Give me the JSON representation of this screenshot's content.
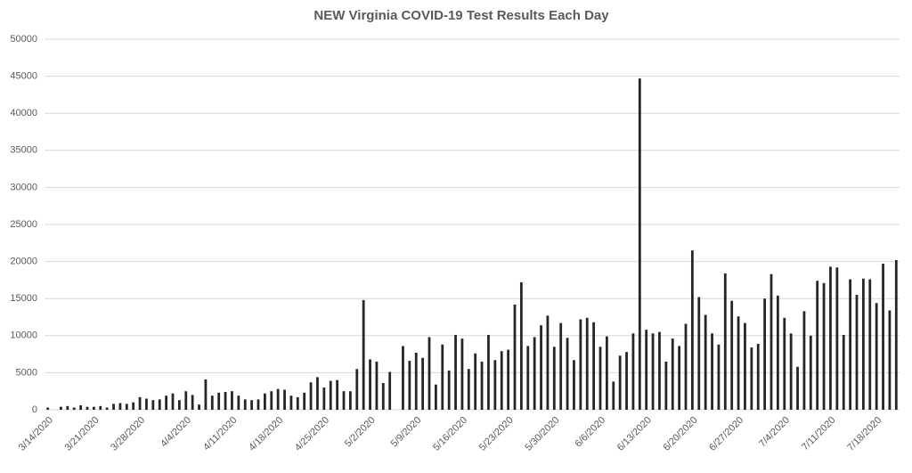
{
  "chart_data": {
    "type": "bar",
    "title": "NEW Virginia COVID-19 Test Results Each Day",
    "categories": [
      "3/14/2020",
      null,
      null,
      null,
      null,
      null,
      null,
      "3/21/2020",
      null,
      null,
      null,
      null,
      null,
      null,
      "3/28/2020",
      null,
      null,
      null,
      null,
      null,
      null,
      "4/4/2020",
      null,
      null,
      null,
      null,
      null,
      null,
      "4/11/2020",
      null,
      null,
      null,
      null,
      null,
      null,
      "4/18/2020",
      null,
      null,
      null,
      null,
      null,
      null,
      "4/25/2020",
      null,
      null,
      null,
      null,
      null,
      null,
      "5/2/2020",
      null,
      null,
      null,
      null,
      null,
      null,
      "5/9/2020",
      null,
      null,
      null,
      null,
      null,
      null,
      "5/16/2020",
      null,
      null,
      null,
      null,
      null,
      null,
      "5/23/2020",
      null,
      null,
      null,
      null,
      null,
      null,
      "5/30/2020",
      null,
      null,
      null,
      null,
      null,
      null,
      "6/6/2020",
      null,
      null,
      null,
      null,
      null,
      null,
      "6/13/2020",
      null,
      null,
      null,
      null,
      null,
      null,
      "6/20/2020",
      null,
      null,
      null,
      null,
      null,
      null,
      "6/27/2020",
      null,
      null,
      null,
      null,
      null,
      null,
      "7/4/2020",
      null,
      null,
      null,
      null,
      null,
      null,
      "7/11/2020",
      null,
      null,
      null,
      null,
      null,
      null,
      "7/18/2020",
      null,
      null,
      null
    ],
    "values": [
      300,
      0,
      400,
      500,
      300,
      600,
      400,
      400,
      500,
      300,
      800,
      900,
      800,
      1000,
      1700,
      1500,
      1300,
      1400,
      1900,
      2200,
      1300,
      2500,
      2000,
      700,
      4100,
      1900,
      2300,
      2400,
      2500,
      1900,
      1400,
      1300,
      1400,
      2200,
      2500,
      2800,
      2700,
      1900,
      1700,
      2300,
      3700,
      4400,
      3000,
      3900,
      4000,
      2500,
      2500,
      5500,
      14800,
      6800,
      6500,
      3600,
      5100,
      0,
      8600,
      6600,
      7700,
      7000,
      9800,
      3400,
      8800,
      5300,
      10100,
      9600,
      5500,
      7600,
      6500,
      10100,
      6700,
      7900,
      8100,
      14200,
      17200,
      8600,
      9800,
      11400,
      12700,
      8500,
      11700,
      9700,
      6700,
      12200,
      12400,
      11800,
      8500,
      9900,
      3800,
      7300,
      7800,
      10300,
      44700,
      10800,
      10300,
      10500,
      6500,
      9600,
      8600,
      11600,
      21500,
      15200,
      12800,
      10300,
      8800,
      18400,
      14700,
      12600,
      11700,
      8400,
      8900,
      15000,
      18300,
      15400,
      12400,
      10300,
      5800,
      13300,
      10000,
      17400,
      17100,
      19300,
      19200,
      10100,
      17600,
      15500,
      17700,
      17600,
      14400,
      19700,
      13400,
      20200
    ],
    "color": "#262626",
    "ylim": [
      0,
      50000
    ],
    "yticks": [
      0,
      5000,
      10000,
      15000,
      20000,
      25000,
      30000,
      35000,
      40000,
      45000,
      50000
    ],
    "grid": true
  }
}
